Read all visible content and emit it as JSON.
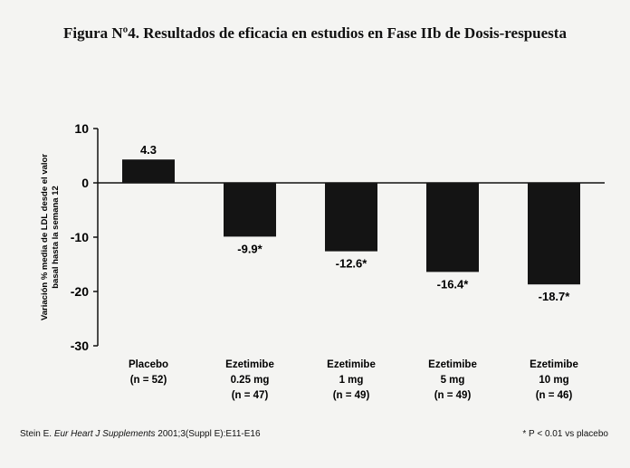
{
  "title": "Figura Nº4. Resultados de eficacia en estudios en Fase IIb de Dosis-respuesta",
  "footer": {
    "source_prefix": "Stein E. ",
    "source_journal": "Eur Heart J Supplements",
    "source_suffix": " 2001;3(Suppl E):E11-E16",
    "note": "* P < 0.01 vs placebo"
  },
  "chart_data": {
    "type": "bar",
    "title": "",
    "ylabel": [
      "Variación % media de LDL desde el valor",
      "basal hasta la semana 12"
    ],
    "xlabel": "",
    "ylim": [
      -30,
      10
    ],
    "yticks": [
      10,
      0,
      -10,
      -20,
      -30
    ],
    "grid": false,
    "categories": [
      [
        "Placebo",
        "(n = 52)"
      ],
      [
        "Ezetimibe",
        "0.25 mg",
        "(n = 47)"
      ],
      [
        "Ezetimibe",
        "1 mg",
        "(n = 49)"
      ],
      [
        "Ezetimibe",
        "5 mg",
        "(n = 49)"
      ],
      [
        "Ezetimibe",
        "10 mg",
        "(n = 46)"
      ]
    ],
    "values": [
      4.3,
      -9.9,
      -12.6,
      -16.4,
      -18.7
    ],
    "value_labels": [
      "4.3",
      "-9.9*",
      "-12.6*",
      "-16.4*",
      "-18.7*"
    ],
    "bar_color": "#141414"
  }
}
